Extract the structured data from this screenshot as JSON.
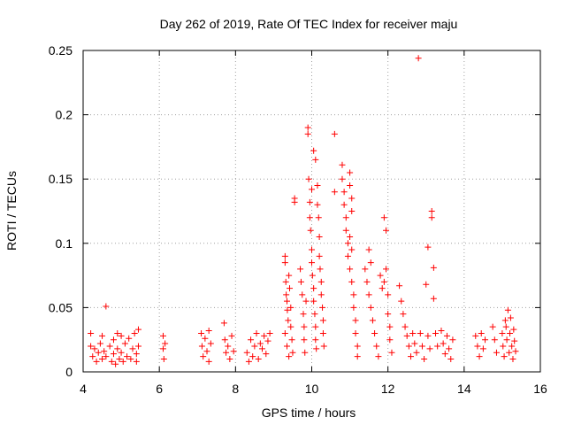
{
  "chart_data": {
    "type": "scatter",
    "title": "Day 262 of 2019, Rate Of TEC Index for receiver maju",
    "xlabel": "GPS time / hours",
    "ylabel": "ROTI / TECUs",
    "xlim": [
      4,
      16
    ],
    "ylim": [
      0,
      0.25
    ],
    "x_ticks": [
      4,
      6,
      8,
      10,
      12,
      14,
      16
    ],
    "x_tick_labels": [
      "4",
      "6",
      "8",
      "10",
      "12",
      "14",
      "16"
    ],
    "y_ticks": [
      0,
      0.05,
      0.1,
      0.15,
      0.2,
      0.25
    ],
    "y_tick_labels": [
      "0",
      "0.05",
      "0.1",
      "0.15",
      "0.2",
      "0.25"
    ],
    "grid": true,
    "marker": "+",
    "color": "#ff0000",
    "series": [
      {
        "name": "ROTI",
        "points": [
          [
            4.2,
            0.03
          ],
          [
            4.2,
            0.02
          ],
          [
            4.25,
            0.012
          ],
          [
            4.3,
            0.018
          ],
          [
            4.35,
            0.008
          ],
          [
            4.4,
            0.015
          ],
          [
            4.45,
            0.022
          ],
          [
            4.5,
            0.028
          ],
          [
            4.5,
            0.01
          ],
          [
            4.55,
            0.016
          ],
          [
            4.6,
            0.051
          ],
          [
            4.6,
            0.012
          ],
          [
            4.7,
            0.02
          ],
          [
            4.75,
            0.008
          ],
          [
            4.8,
            0.025
          ],
          [
            4.8,
            0.014
          ],
          [
            4.85,
            0.006
          ],
          [
            4.9,
            0.03
          ],
          [
            4.9,
            0.018
          ],
          [
            4.95,
            0.01
          ],
          [
            5.0,
            0.028
          ],
          [
            5.0,
            0.015
          ],
          [
            5.05,
            0.008
          ],
          [
            5.1,
            0.022
          ],
          [
            5.15,
            0.012
          ],
          [
            5.2,
            0.026
          ],
          [
            5.25,
            0.01
          ],
          [
            5.3,
            0.018
          ],
          [
            5.35,
            0.03
          ],
          [
            5.4,
            0.014
          ],
          [
            5.4,
            0.008
          ],
          [
            5.45,
            0.033
          ],
          [
            5.45,
            0.02
          ],
          [
            6.1,
            0.028
          ],
          [
            6.1,
            0.018
          ],
          [
            6.12,
            0.01
          ],
          [
            6.15,
            0.022
          ],
          [
            7.1,
            0.03
          ],
          [
            7.12,
            0.02
          ],
          [
            7.15,
            0.012
          ],
          [
            7.2,
            0.026
          ],
          [
            7.25,
            0.016
          ],
          [
            7.3,
            0.008
          ],
          [
            7.3,
            0.032
          ],
          [
            7.35,
            0.022
          ],
          [
            7.7,
            0.038
          ],
          [
            7.72,
            0.025
          ],
          [
            7.75,
            0.015
          ],
          [
            7.8,
            0.02
          ],
          [
            7.85,
            0.01
          ],
          [
            7.9,
            0.028
          ],
          [
            7.95,
            0.016
          ],
          [
            8.3,
            0.015
          ],
          [
            8.35,
            0.008
          ],
          [
            8.4,
            0.025
          ],
          [
            8.45,
            0.012
          ],
          [
            8.5,
            0.02
          ],
          [
            8.55,
            0.03
          ],
          [
            8.6,
            0.01
          ],
          [
            8.65,
            0.022
          ],
          [
            8.7,
            0.018
          ],
          [
            8.75,
            0.028
          ],
          [
            8.8,
            0.014
          ],
          [
            8.85,
            0.024
          ],
          [
            8.9,
            0.03
          ],
          [
            9.3,
            0.09
          ],
          [
            9.3,
            0.085
          ],
          [
            9.32,
            0.07
          ],
          [
            9.33,
            0.06
          ],
          [
            9.35,
            0.055
          ],
          [
            9.36,
            0.048
          ],
          [
            9.38,
            0.04
          ],
          [
            9.3,
            0.03
          ],
          [
            9.35,
            0.02
          ],
          [
            9.4,
            0.012
          ],
          [
            9.4,
            0.075
          ],
          [
            9.42,
            0.065
          ],
          [
            9.45,
            0.05
          ],
          [
            9.45,
            0.035
          ],
          [
            9.48,
            0.025
          ],
          [
            9.5,
            0.015
          ],
          [
            9.55,
            0.135
          ],
          [
            9.55,
            0.132
          ],
          [
            9.7,
            0.08
          ],
          [
            9.72,
            0.07
          ],
          [
            9.75,
            0.06
          ],
          [
            9.78,
            0.045
          ],
          [
            9.8,
            0.035
          ],
          [
            9.8,
            0.025
          ],
          [
            9.82,
            0.015
          ],
          [
            9.85,
            0.055
          ],
          [
            9.9,
            0.19
          ],
          [
            9.9,
            0.185
          ],
          [
            9.92,
            0.15
          ],
          [
            9.95,
            0.132
          ],
          [
            9.95,
            0.12
          ],
          [
            9.97,
            0.11
          ],
          [
            10.0,
            0.095
          ],
          [
            10.0,
            0.085
          ],
          [
            10.02,
            0.075
          ],
          [
            10.05,
            0.065
          ],
          [
            10.05,
            0.055
          ],
          [
            10.08,
            0.045
          ],
          [
            10.1,
            0.035
          ],
          [
            10.1,
            0.025
          ],
          [
            10.12,
            0.018
          ],
          [
            10.15,
            0.145
          ],
          [
            10.15,
            0.13
          ],
          [
            10.18,
            0.12
          ],
          [
            10.2,
            0.105
          ],
          [
            10.2,
            0.09
          ],
          [
            10.22,
            0.08
          ],
          [
            10.25,
            0.07
          ],
          [
            10.25,
            0.06
          ],
          [
            10.28,
            0.05
          ],
          [
            10.3,
            0.04
          ],
          [
            10.3,
            0.03
          ],
          [
            10.32,
            0.02
          ],
          [
            10.05,
            0.172
          ],
          [
            10.1,
            0.165
          ],
          [
            10.0,
            0.142
          ],
          [
            10.6,
            0.185
          ],
          [
            10.6,
            0.14
          ],
          [
            10.8,
            0.161
          ],
          [
            10.8,
            0.15
          ],
          [
            10.85,
            0.14
          ],
          [
            10.85,
            0.13
          ],
          [
            10.9,
            0.12
          ],
          [
            10.9,
            0.11
          ],
          [
            10.95,
            0.1
          ],
          [
            10.95,
            0.09
          ],
          [
            11.0,
            0.155
          ],
          [
            11.0,
            0.145
          ],
          [
            11.05,
            0.135
          ],
          [
            11.05,
            0.125
          ],
          [
            11.0,
            0.08
          ],
          [
            11.05,
            0.07
          ],
          [
            11.1,
            0.06
          ],
          [
            11.1,
            0.05
          ],
          [
            11.15,
            0.04
          ],
          [
            11.15,
            0.03
          ],
          [
            11.2,
            0.02
          ],
          [
            11.2,
            0.012
          ],
          [
            11.0,
            0.105
          ],
          [
            11.05,
            0.095
          ],
          [
            11.4,
            0.08
          ],
          [
            11.45,
            0.07
          ],
          [
            11.5,
            0.06
          ],
          [
            11.55,
            0.05
          ],
          [
            11.6,
            0.04
          ],
          [
            11.65,
            0.03
          ],
          [
            11.7,
            0.02
          ],
          [
            11.75,
            0.012
          ],
          [
            11.5,
            0.095
          ],
          [
            11.55,
            0.085
          ],
          [
            11.8,
            0.075
          ],
          [
            11.85,
            0.065
          ],
          [
            11.9,
            0.12
          ],
          [
            11.95,
            0.11
          ],
          [
            11.95,
            0.08
          ],
          [
            11.9,
            0.07
          ],
          [
            12.0,
            0.06
          ],
          [
            12.0,
            0.045
          ],
          [
            12.05,
            0.035
          ],
          [
            12.05,
            0.025
          ],
          [
            12.1,
            0.015
          ],
          [
            12.3,
            0.067
          ],
          [
            12.35,
            0.055
          ],
          [
            12.4,
            0.045
          ],
          [
            12.45,
            0.035
          ],
          [
            12.5,
            0.028
          ],
          [
            12.55,
            0.02
          ],
          [
            12.6,
            0.012
          ],
          [
            12.65,
            0.03
          ],
          [
            12.7,
            0.022
          ],
          [
            12.75,
            0.015
          ],
          [
            12.8,
            0.244
          ],
          [
            12.85,
            0.03
          ],
          [
            12.9,
            0.02
          ],
          [
            12.95,
            0.01
          ],
          [
            13.0,
            0.068
          ],
          [
            13.05,
            0.097
          ],
          [
            13.05,
            0.028
          ],
          [
            13.1,
            0.018
          ],
          [
            13.15,
            0.125
          ],
          [
            13.15,
            0.12
          ],
          [
            13.2,
            0.081
          ],
          [
            13.2,
            0.057
          ],
          [
            13.25,
            0.03
          ],
          [
            13.3,
            0.02
          ],
          [
            13.4,
            0.032
          ],
          [
            13.45,
            0.022
          ],
          [
            13.5,
            0.014
          ],
          [
            13.55,
            0.028
          ],
          [
            13.6,
            0.018
          ],
          [
            13.65,
            0.01
          ],
          [
            13.7,
            0.025
          ],
          [
            14.3,
            0.028
          ],
          [
            14.35,
            0.02
          ],
          [
            14.4,
            0.012
          ],
          [
            14.45,
            0.03
          ],
          [
            14.5,
            0.018
          ],
          [
            14.55,
            0.025
          ],
          [
            14.75,
            0.035
          ],
          [
            14.8,
            0.025
          ],
          [
            14.85,
            0.015
          ],
          [
            15.0,
            0.03
          ],
          [
            15.02,
            0.02
          ],
          [
            15.05,
            0.012
          ],
          [
            15.08,
            0.04
          ],
          [
            15.1,
            0.035
          ],
          [
            15.12,
            0.025
          ],
          [
            15.15,
            0.048
          ],
          [
            15.18,
            0.015
          ],
          [
            15.2,
            0.03
          ],
          [
            15.22,
            0.042
          ],
          [
            15.25,
            0.02
          ],
          [
            15.28,
            0.01
          ],
          [
            15.3,
            0.033
          ],
          [
            15.32,
            0.024
          ],
          [
            15.35,
            0.016
          ]
        ]
      }
    ]
  }
}
